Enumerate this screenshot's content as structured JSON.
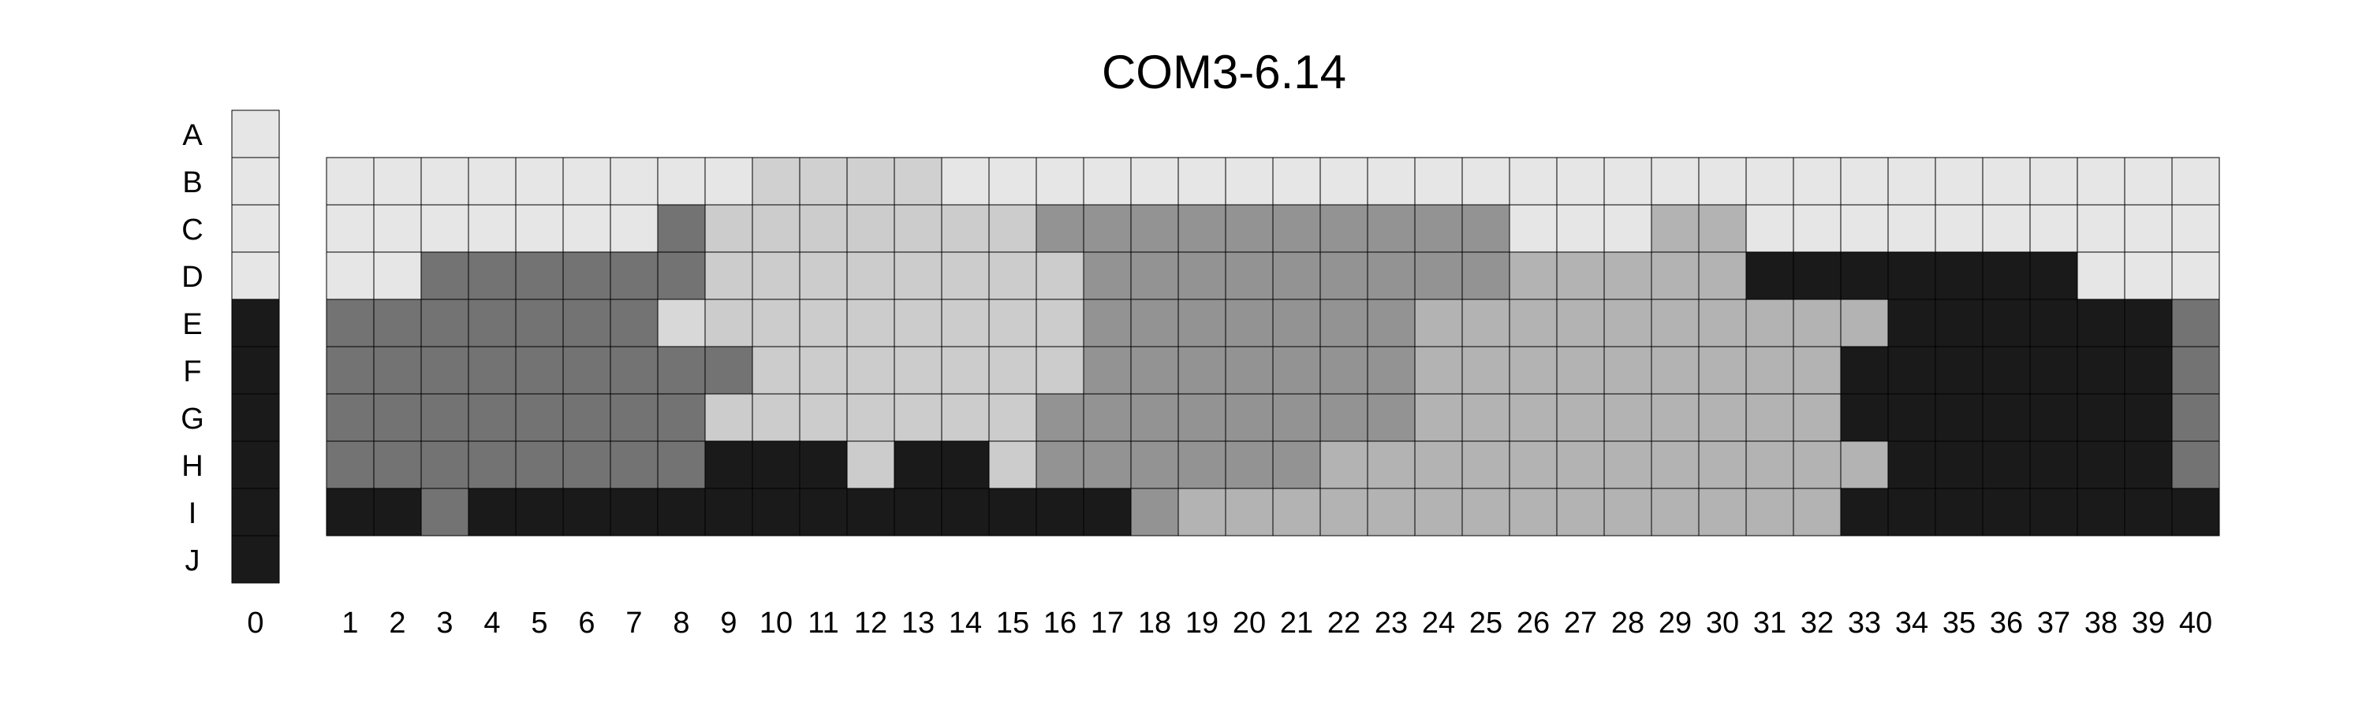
{
  "chart_data": {
    "type": "heatmap",
    "title": "COM3-6.14",
    "row_labels": [
      "A",
      "B",
      "C",
      "D",
      "E",
      "F",
      "G",
      "H",
      "I",
      "J"
    ],
    "column0_label": "0",
    "column_labels": [
      "1",
      "2",
      "3",
      "4",
      "5",
      "6",
      "7",
      "8",
      "9",
      "10",
      "11",
      "12",
      "13",
      "14",
      "15",
      "16",
      "17",
      "18",
      "19",
      "20",
      "21",
      "22",
      "23",
      "24",
      "25",
      "26",
      "27",
      "28",
      "29",
      "30",
      "31",
      "32",
      "33",
      "34",
      "35",
      "36",
      "37",
      "38",
      "39",
      "40"
    ],
    "palette": {
      "a": "#e6e6e6",
      "b": "#d8d8d8",
      "c": "#d0d0d0",
      "d": "#cccccc",
      "e": "#b3b3b3",
      "f": "#939393",
      "g": "#737373",
      "h": "#1a1a1a"
    },
    "column0": [
      "a",
      "a",
      "a",
      "a",
      "h",
      "h",
      "h",
      "h",
      "h",
      "h"
    ],
    "grid_rows": [
      "B",
      "C",
      "D",
      "E",
      "F",
      "G",
      "H",
      "I"
    ],
    "grid": [
      [
        "a",
        "a",
        "a",
        "a",
        "a",
        "a",
        "a",
        "a",
        "a",
        "c",
        "c",
        "c",
        "c",
        "a",
        "a",
        "a",
        "a",
        "a",
        "a",
        "a",
        "a",
        "a",
        "a",
        "a",
        "a",
        "a",
        "a",
        "a",
        "a",
        "a",
        "a",
        "a",
        "a",
        "a",
        "a",
        "a",
        "a",
        "a",
        "a",
        "a"
      ],
      [
        "a",
        "a",
        "a",
        "a",
        "a",
        "a",
        "a",
        "g",
        "d",
        "d",
        "d",
        "d",
        "d",
        "d",
        "d",
        "f",
        "f",
        "f",
        "f",
        "f",
        "f",
        "f",
        "f",
        "f",
        "f",
        "a",
        "a",
        "a",
        "e",
        "e",
        "a",
        "a",
        "a",
        "a",
        "a",
        "a",
        "a",
        "a",
        "a",
        "a"
      ],
      [
        "a",
        "a",
        "g",
        "g",
        "g",
        "g",
        "g",
        "g",
        "d",
        "d",
        "d",
        "d",
        "d",
        "d",
        "d",
        "d",
        "f",
        "f",
        "f",
        "f",
        "f",
        "f",
        "f",
        "f",
        "f",
        "e",
        "e",
        "e",
        "e",
        "e",
        "h",
        "h",
        "h",
        "h",
        "h",
        "h",
        "h",
        "a",
        "a",
        "a"
      ],
      [
        "g",
        "g",
        "g",
        "g",
        "g",
        "g",
        "g",
        "b",
        "d",
        "d",
        "d",
        "d",
        "d",
        "d",
        "d",
        "d",
        "f",
        "f",
        "f",
        "f",
        "f",
        "f",
        "f",
        "e",
        "e",
        "e",
        "e",
        "e",
        "e",
        "e",
        "e",
        "e",
        "e",
        "h",
        "h",
        "h",
        "h",
        "h",
        "h",
        "g"
      ],
      [
        "g",
        "g",
        "g",
        "g",
        "g",
        "g",
        "g",
        "g",
        "g",
        "d",
        "d",
        "d",
        "d",
        "d",
        "d",
        "d",
        "f",
        "f",
        "f",
        "f",
        "f",
        "f",
        "f",
        "e",
        "e",
        "e",
        "e",
        "e",
        "e",
        "e",
        "e",
        "e",
        "h",
        "h",
        "h",
        "h",
        "h",
        "h",
        "h",
        "g"
      ],
      [
        "g",
        "g",
        "g",
        "g",
        "g",
        "g",
        "g",
        "g",
        "d",
        "d",
        "d",
        "d",
        "d",
        "d",
        "d",
        "f",
        "f",
        "f",
        "f",
        "f",
        "f",
        "f",
        "f",
        "e",
        "e",
        "e",
        "e",
        "e",
        "e",
        "e",
        "e",
        "e",
        "h",
        "h",
        "h",
        "h",
        "h",
        "h",
        "h",
        "g"
      ],
      [
        "g",
        "g",
        "g",
        "g",
        "g",
        "g",
        "g",
        "g",
        "h",
        "h",
        "h",
        "d",
        "h",
        "h",
        "d",
        "f",
        "f",
        "f",
        "f",
        "f",
        "f",
        "e",
        "e",
        "e",
        "e",
        "e",
        "e",
        "e",
        "e",
        "e",
        "e",
        "e",
        "e",
        "h",
        "h",
        "h",
        "h",
        "h",
        "h",
        "g"
      ],
      [
        "h",
        "h",
        "g",
        "h",
        "h",
        "h",
        "h",
        "h",
        "h",
        "h",
        "h",
        "h",
        "h",
        "h",
        "h",
        "h",
        "h",
        "f",
        "e",
        "e",
        "e",
        "e",
        "e",
        "e",
        "e",
        "e",
        "e",
        "e",
        "e",
        "e",
        "e",
        "e",
        "h",
        "h",
        "h",
        "h",
        "h",
        "h",
        "h",
        "h"
      ]
    ]
  }
}
